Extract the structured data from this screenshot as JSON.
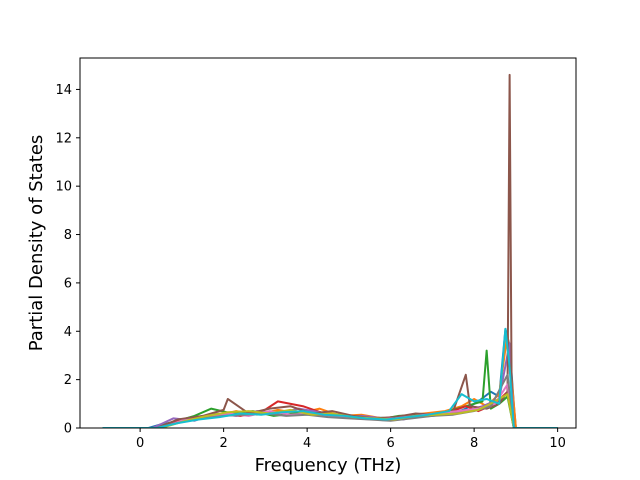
{
  "chart_data": {
    "type": "line",
    "title": "",
    "xlabel": "Frequency (THz)",
    "ylabel": "Partial Density of States",
    "xlim": [
      -1.44,
      10.44
    ],
    "ylim": [
      0,
      15.3
    ],
    "xticks": [
      0,
      2,
      4,
      6,
      8,
      10
    ],
    "xtick_labels": [
      "0",
      "2",
      "4",
      "6",
      "8",
      "10"
    ],
    "yticks": [
      0,
      2,
      4,
      6,
      8,
      10,
      12,
      14
    ],
    "ytick_labels": [
      "0",
      "2",
      "4",
      "6",
      "8",
      "10",
      "12",
      "14"
    ],
    "grid": false,
    "legend": "none",
    "colors": [
      "#1f77b4",
      "#ff7f0e",
      "#2ca02c",
      "#d62728",
      "#9467bd",
      "#8c564b",
      "#e377c2",
      "#7f7f7f",
      "#bcbd22",
      "#17becf"
    ],
    "series": [
      {
        "color": "#1f77b4",
        "x": [
          -0.9,
          0.2,
          0.5,
          1.0,
          1.5,
          2.0,
          2.5,
          3.0,
          3.5,
          4.0,
          4.5,
          5.0,
          5.5,
          6.0,
          6.5,
          7.0,
          7.5,
          7.8,
          8.1,
          8.4,
          8.6,
          8.75,
          8.85,
          8.95,
          9.0,
          10.0
        ],
        "y": [
          0,
          0,
          0.15,
          0.3,
          0.45,
          0.55,
          0.6,
          0.65,
          0.7,
          0.6,
          0.55,
          0.5,
          0.45,
          0.4,
          0.45,
          0.5,
          0.6,
          0.8,
          1.1,
          1.5,
          1.3,
          4.1,
          3.4,
          1.0,
          0,
          0
        ]
      },
      {
        "color": "#ff7f0e",
        "x": [
          -0.9,
          0.3,
          0.7,
          1.2,
          1.8,
          2.3,
          2.8,
          3.3,
          3.8,
          4.3,
          4.8,
          5.3,
          5.8,
          6.3,
          6.8,
          7.3,
          7.7,
          8.0,
          8.3,
          8.6,
          8.8,
          8.9,
          9.0,
          10.0
        ],
        "y": [
          0,
          0,
          0.2,
          0.35,
          0.5,
          0.7,
          0.55,
          0.75,
          0.6,
          0.8,
          0.5,
          0.55,
          0.4,
          0.5,
          0.6,
          0.7,
          0.9,
          1.2,
          0.9,
          1.4,
          3.9,
          2.0,
          0,
          0
        ]
      },
      {
        "color": "#2ca02c",
        "x": [
          -0.9,
          0.3,
          0.8,
          1.3,
          1.7,
          2.2,
          2.7,
          3.2,
          3.7,
          4.2,
          4.7,
          5.2,
          5.7,
          6.2,
          6.7,
          7.2,
          7.6,
          8.0,
          8.2,
          8.3,
          8.4,
          8.6,
          8.8,
          8.95,
          10.0
        ],
        "y": [
          0,
          0,
          0.25,
          0.5,
          0.8,
          0.6,
          0.7,
          0.5,
          0.6,
          0.7,
          0.5,
          0.45,
          0.35,
          0.5,
          0.55,
          0.6,
          0.8,
          1.0,
          1.1,
          3.2,
          0.8,
          1.0,
          1.3,
          0,
          0
        ]
      },
      {
        "color": "#d62728",
        "x": [
          -0.9,
          0.4,
          0.9,
          1.4,
          1.9,
          2.4,
          2.9,
          3.3,
          3.9,
          4.4,
          4.9,
          5.4,
          5.9,
          6.4,
          6.9,
          7.4,
          7.8,
          8.1,
          8.5,
          8.8,
          8.95,
          10.0
        ],
        "y": [
          0,
          0,
          0.3,
          0.4,
          0.55,
          0.5,
          0.65,
          1.1,
          0.9,
          0.6,
          0.55,
          0.4,
          0.35,
          0.45,
          0.5,
          0.65,
          0.9,
          0.7,
          1.0,
          1.5,
          0,
          0
        ]
      },
      {
        "color": "#9467bd",
        "x": [
          -0.9,
          0.3,
          0.8,
          1.3,
          1.8,
          2.3,
          2.8,
          3.3,
          3.8,
          4.3,
          4.8,
          5.3,
          5.8,
          6.3,
          6.8,
          7.3,
          7.8,
          8.2,
          8.6,
          8.85,
          8.95,
          10.0
        ],
        "y": [
          0,
          0,
          0.4,
          0.3,
          0.6,
          0.5,
          0.7,
          0.6,
          0.8,
          0.65,
          0.45,
          0.5,
          0.4,
          0.35,
          0.55,
          0.6,
          0.7,
          0.9,
          1.2,
          3.5,
          0,
          0
        ]
      },
      {
        "color": "#8c564b",
        "x": [
          -0.9,
          0.4,
          0.9,
          1.5,
          2.0,
          2.1,
          2.6,
          3.1,
          3.6,
          4.1,
          4.6,
          5.1,
          5.6,
          6.1,
          6.6,
          7.1,
          7.5,
          7.8,
          7.9,
          8.3,
          8.6,
          8.8,
          8.85,
          8.9,
          8.95,
          10.0
        ],
        "y": [
          0,
          0,
          0.35,
          0.5,
          0.75,
          1.2,
          0.6,
          0.8,
          0.9,
          0.6,
          0.7,
          0.5,
          0.4,
          0.45,
          0.6,
          0.55,
          0.7,
          2.2,
          0.9,
          0.8,
          1.0,
          1.5,
          14.6,
          1.2,
          0,
          0
        ]
      },
      {
        "color": "#e377c2",
        "x": [
          -0.9,
          0.5,
          1.0,
          1.6,
          2.1,
          2.6,
          3.1,
          3.6,
          4.1,
          4.6,
          5.1,
          5.6,
          6.1,
          6.6,
          7.1,
          7.6,
          8.1,
          8.5,
          8.8,
          8.95,
          10.0
        ],
        "y": [
          0,
          0,
          0.3,
          0.45,
          0.6,
          0.5,
          0.7,
          0.55,
          0.6,
          0.5,
          0.4,
          0.35,
          0.4,
          0.5,
          0.6,
          0.7,
          0.8,
          1.0,
          1.8,
          0,
          0
        ]
      },
      {
        "color": "#7f7f7f",
        "x": [
          -0.9,
          0.4,
          1.0,
          1.5,
          2.0,
          2.5,
          3.0,
          3.5,
          4.0,
          4.5,
          5.0,
          5.5,
          6.0,
          6.5,
          7.0,
          7.5,
          8.0,
          8.4,
          8.8,
          8.95,
          10.0
        ],
        "y": [
          0,
          0,
          0.25,
          0.4,
          0.5,
          0.55,
          0.6,
          0.5,
          0.55,
          0.45,
          0.4,
          0.35,
          0.3,
          0.4,
          0.5,
          0.55,
          0.7,
          0.9,
          2.2,
          0,
          0
        ]
      },
      {
        "color": "#bcbd22",
        "x": [
          -0.9,
          0.5,
          1.1,
          1.6,
          2.1,
          2.6,
          3.1,
          3.6,
          4.1,
          4.6,
          5.1,
          5.6,
          6.1,
          6.6,
          7.1,
          7.6,
          8.1,
          8.5,
          8.8,
          8.95,
          10.0
        ],
        "y": [
          0,
          0,
          0.3,
          0.5,
          0.65,
          0.7,
          0.6,
          0.75,
          0.55,
          0.6,
          0.45,
          0.4,
          0.35,
          0.5,
          0.55,
          0.6,
          0.75,
          1.1,
          1.4,
          0,
          0
        ]
      },
      {
        "color": "#17becf",
        "x": [
          -0.9,
          0.4,
          0.9,
          1.4,
          1.9,
          2.4,
          2.9,
          3.4,
          3.9,
          4.4,
          4.9,
          5.4,
          5.9,
          6.4,
          6.9,
          7.4,
          7.7,
          8.0,
          8.3,
          8.6,
          8.75,
          8.85,
          8.95,
          10.0
        ],
        "y": [
          0,
          0,
          0.2,
          0.35,
          0.45,
          0.6,
          0.55,
          0.65,
          0.7,
          0.55,
          0.5,
          0.4,
          0.35,
          0.45,
          0.55,
          0.7,
          1.4,
          1.1,
          1.2,
          1.0,
          4.1,
          2.5,
          0,
          0
        ]
      }
    ]
  }
}
